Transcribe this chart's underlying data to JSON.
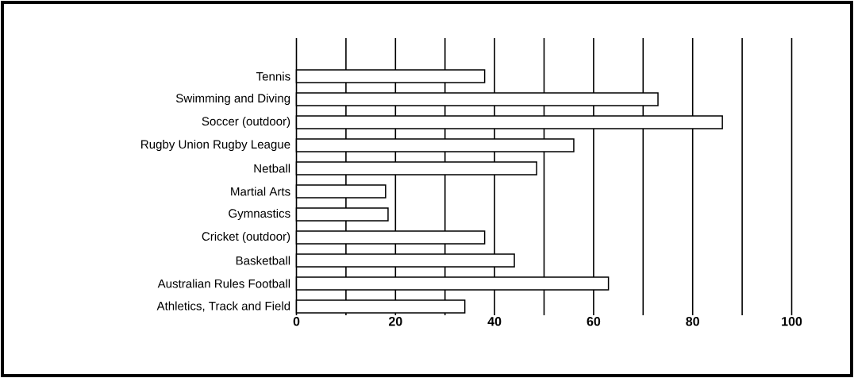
{
  "chart_data": {
    "type": "bar",
    "orientation": "horizontal",
    "categories": [
      "Tennis",
      "Swimming and Diving",
      "Soccer (outdoor)",
      "Rugby Union Rugby League",
      "Netball",
      "Martial Arts",
      "Gymnastics",
      "Cricket (outdoor)",
      "Basketball",
      "Australian Rules Football",
      "Athletics, Track and Field"
    ],
    "values": [
      38,
      73,
      86,
      56,
      48.5,
      18,
      18.5,
      38,
      44,
      63,
      34
    ],
    "color": "#ffffff",
    "xlim": [
      0,
      100
    ],
    "xticks": [
      0,
      {
        "value": 10,
        "label": null
      },
      20,
      {
        "value": 30,
        "label": null
      },
      40,
      {
        "value": 50,
        "label": null
      },
      60,
      {
        "value": 70,
        "label": null
      },
      80,
      {
        "value": 90,
        "label": null
      },
      100
    ],
    "grid": "x"
  }
}
